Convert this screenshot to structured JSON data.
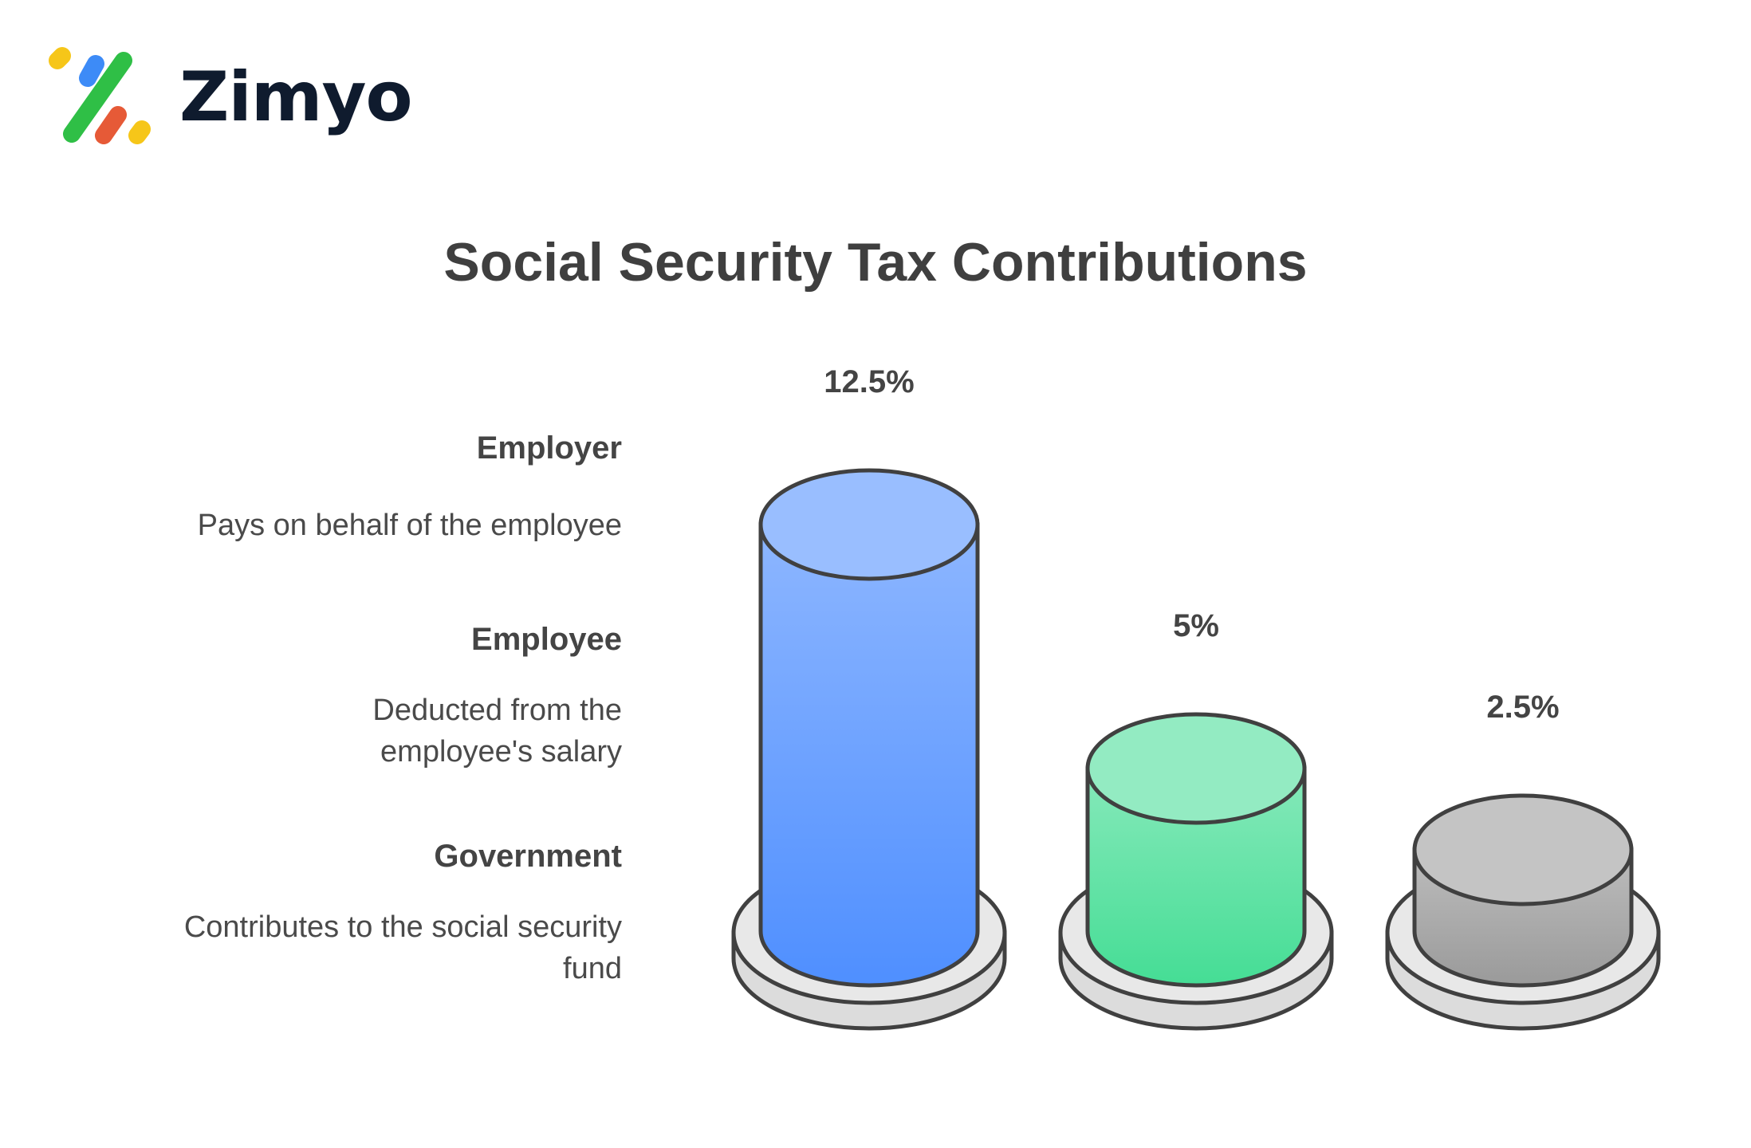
{
  "brand": {
    "name": "Zimyo",
    "logo_icon": "zimyo-logo-icon"
  },
  "chart_data": {
    "type": "bar",
    "title": "Social Security Tax Contributions",
    "categories": [
      "Employer",
      "Employee",
      "Government"
    ],
    "values": [
      12.5,
      5,
      2.5
    ],
    "value_labels": [
      "12.5%",
      "5%",
      "2.5%"
    ],
    "descriptions": [
      "Pays on behalf of the employee",
      "Deducted from the employee's salary",
      "Contributes to the social security fund"
    ],
    "colors": [
      "#4f8fff",
      "#45dd95",
      "#9a9a9a"
    ],
    "legend_position": "left"
  }
}
